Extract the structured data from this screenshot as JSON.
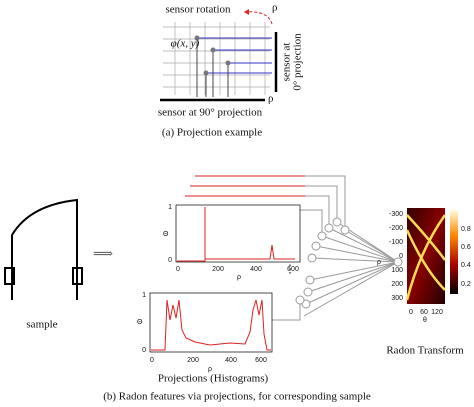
{
  "panel_a": {
    "sensor_rotation": "sensor rotation",
    "rho_rotation": "ρ",
    "phi": "φ(x, y)",
    "sensor_0_line1": "sensor at",
    "sensor_0_line2": "0° projection",
    "sensor_90": "sensor at 90° projection",
    "rho_bottom": "ρ",
    "caption": "(a) Projection example"
  },
  "panel_b": {
    "sample_label": "sample",
    "arrow": "⟹",
    "hist1": {
      "ylabel": "Θ",
      "xlabel": "ρ",
      "yticks": [
        "1",
        "0"
      ],
      "xticks": [
        "0",
        "200",
        "400",
        "600"
      ]
    },
    "hist2": {
      "ylabel": "Θ",
      "xlabel": "ρ",
      "yticks": [
        "1",
        "0"
      ],
      "xticks": [
        "0",
        "200",
        "400",
        "600"
      ]
    },
    "projections_caption": "Projections (Histograms)",
    "ellipsis": "⋮",
    "radon": {
      "ylabel": "ρ",
      "xlabel": "θ",
      "yticks": [
        "-300",
        "-200",
        "-100",
        "0",
        "100",
        "200",
        "300"
      ],
      "xticks": [
        "0",
        "60",
        "120"
      ],
      "colorbar_ticks": [
        "0.2",
        "0.4",
        "0.6",
        "0.8"
      ],
      "title": "Radon Transform"
    },
    "caption": "(b) Radon features via projections, for corresponding sample"
  }
}
